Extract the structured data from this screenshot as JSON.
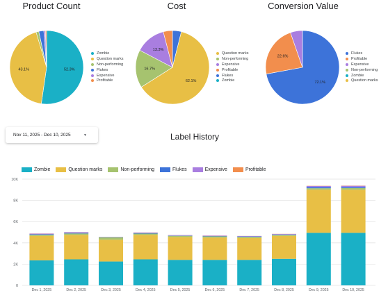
{
  "colors": {
    "zombie": "#1ab0c6",
    "question_marks": "#e8bf45",
    "non_performing": "#a6c36f",
    "flukes": "#3d73d9",
    "expensive": "#a97ee0",
    "profitable": "#f28e4d"
  },
  "pies": [
    {
      "title": "Product Count",
      "legend": [
        "Zombie",
        "Question marks",
        "Non-performing",
        "Flukes",
        "Expensive",
        "Profitable"
      ],
      "legend_colors": [
        "#1ab0c6",
        "#e8bf45",
        "#a6c36f",
        "#3d73d9",
        "#a97ee0",
        "#f28e4d"
      ],
      "slices": [
        {
          "label": "Zombie",
          "value": 52.3,
          "color": "#1ab0c6",
          "text": "52.3%"
        },
        {
          "label": "Question marks",
          "value": 43.1,
          "color": "#e8bf45",
          "text": "43.1%"
        },
        {
          "label": "Non-performing",
          "value": 1.2,
          "color": "#a6c36f",
          "text": ""
        },
        {
          "label": "Flukes",
          "value": 2.2,
          "color": "#3d73d9",
          "text": ""
        },
        {
          "label": "Expensive",
          "value": 0.7,
          "color": "#a97ee0",
          "text": ""
        },
        {
          "label": "Profitable",
          "value": 0.5,
          "color": "#f28e4d",
          "text": ""
        }
      ]
    },
    {
      "title": "Cost",
      "legend": [
        "Question marks",
        "Non-performing",
        "Expensive",
        "Profitable",
        "Flukes",
        "Zombie"
      ],
      "legend_colors": [
        "#e8bf45",
        "#a6c36f",
        "#a97ee0",
        "#f28e4d",
        "#3d73d9",
        "#1ab0c6"
      ],
      "slices": [
        {
          "label": "Flukes",
          "value": 3.9,
          "color": "#3d73d9",
          "text": ""
        },
        {
          "label": "Question marks",
          "value": 62.1,
          "color": "#e8bf45",
          "text": "62.1%"
        },
        {
          "label": "Non-performing",
          "value": 16.7,
          "color": "#a6c36f",
          "text": "16.7%"
        },
        {
          "label": "Expensive",
          "value": 13.3,
          "color": "#a97ee0",
          "text": "13.3%"
        },
        {
          "label": "Profitable",
          "value": 4.0,
          "color": "#f28e4d",
          "text": ""
        }
      ]
    },
    {
      "title": "Conversion Value",
      "legend": [
        "Flukes",
        "Profitable",
        "Expensive",
        "Non-performing",
        "Zombie",
        "Question marks"
      ],
      "legend_colors": [
        "#3d73d9",
        "#f28e4d",
        "#a97ee0",
        "#a6c36f",
        "#1ab0c6",
        "#e8bf45"
      ],
      "slices": [
        {
          "label": "Flukes",
          "value": 72.1,
          "color": "#3d73d9",
          "text": "72.1%"
        },
        {
          "label": "Profitable",
          "value": 22.6,
          "color": "#f28e4d",
          "text": "22.6%"
        },
        {
          "label": "Expensive",
          "value": 5.3,
          "color": "#a97ee0",
          "text": ""
        }
      ]
    }
  ],
  "date_range": {
    "label": "Nov 11, 2025 - Dec 10, 2025",
    "caret": "▼"
  },
  "history": {
    "title": "Label History",
    "legend": [
      {
        "label": "Zombie",
        "color": "#1ab0c6"
      },
      {
        "label": "Question marks",
        "color": "#e8bf45"
      },
      {
        "label": "Non-performing",
        "color": "#a6c36f"
      },
      {
        "label": "Flukes",
        "color": "#3d73d9"
      },
      {
        "label": "Expensive",
        "color": "#a97ee0"
      },
      {
        "label": "Profitable",
        "color": "#f28e4d"
      }
    ]
  },
  "chart_data": {
    "type": "bar",
    "stacked": true,
    "title": "Label History",
    "categories": [
      "Dec 1, 2025",
      "Dec 2, 2025",
      "Dec 3, 2025",
      "Dec 4, 2025",
      "Dec 5, 2025",
      "Dec 6, 2025",
      "Dec 7, 2025",
      "Dec 8, 2025",
      "Dec 9, 2025",
      "Dec 10, 2025"
    ],
    "ylim": [
      0,
      10000
    ],
    "yticks": [
      "0",
      "2K",
      "4K",
      "6K",
      "8K",
      "10K"
    ],
    "series": [
      {
        "name": "Zombie",
        "color": "#1ab0c6",
        "values": [
          2350,
          2450,
          2250,
          2450,
          2400,
          2400,
          2400,
          2500,
          4950,
          4950
        ]
      },
      {
        "name": "Question marks",
        "color": "#e8bf45",
        "values": [
          2300,
          2300,
          2050,
          2300,
          2150,
          2100,
          2050,
          2150,
          4050,
          4050
        ]
      },
      {
        "name": "Non-performing",
        "color": "#a6c36f",
        "values": [
          120,
          130,
          220,
          120,
          110,
          110,
          120,
          110,
          140,
          160
        ]
      },
      {
        "name": "Flukes",
        "color": "#3d73d9",
        "values": [
          40,
          60,
          20,
          50,
          30,
          30,
          30,
          30,
          120,
          110
        ]
      },
      {
        "name": "Expensive",
        "color": "#a97ee0",
        "values": [
          60,
          60,
          20,
          50,
          40,
          40,
          40,
          50,
          90,
          100
        ]
      },
      {
        "name": "Profitable",
        "color": "#f28e4d",
        "values": [
          10,
          10,
          5,
          10,
          10,
          10,
          10,
          10,
          20,
          20
        ]
      }
    ]
  }
}
